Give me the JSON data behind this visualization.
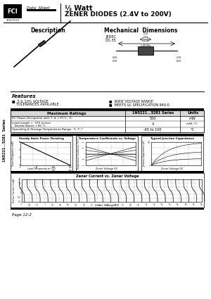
{
  "title_half_watt": "½ Watt",
  "title_zener": "ZENER DIODES (2.4V to 200V)",
  "fci_text": "FCI",
  "data_sheet_text": "Data  Sheet",
  "series_label": "1N5221...5281  Series",
  "description_text": "Description",
  "mech_dim_text": "Mechanical  Dimensions",
  "jedec_text": "JEDEC",
  "do35_text": "DO-35",
  "features_title": "Features",
  "feature1a": "■  5 & 10% VOLTAGE",
  "feature1b": "    TOLERANCES AVAILABLE",
  "feature2a": "■  WIDE VOLTAGE RANGE",
  "feature2b": "■  MEETS UL SPECIFICATION 94V-0",
  "max_ratings_title": "Maximum Ratings",
  "series_title2": "1N5221...5281 Series",
  "units_title": "Units",
  "row1_label": "DC Power Dissipation with Tₗ ≤ +75°C...Pₙ",
  "row1_val": "500",
  "row1_unit": "mW",
  "row2_label": "Lead Length = .375 Inches",
  "row2b_label": "   Derate above +50 °C",
  "row2_val": "4",
  "row2_unit": "mW /°C",
  "row3_label": "Operating & Storage Temperature Range...Tₗ, Tₛₜᴳ",
  "row3_val": "-65 to 100",
  "row3_unit": "°C",
  "graph1_title": "Steady State Power Derating",
  "graph2_title": "Temperature Coefficients vs. Voltage",
  "graph3_title": "Typical Junction Capacitance",
  "graph4_title": "Zener Current vs. Zener Voltage",
  "graph1_ylabel": "Power Dissipation (mW)",
  "graph1_xlabel": "Lead Temperature (°C)",
  "graph2_ylabel": "Temperature Coefficient (%/°C)",
  "graph2_xlabel": "Zener Voltage (V)",
  "graph3_ylabel": "Junction Capacitance (pF)",
  "graph3_xlabel": "Zener Voltage (V)",
  "graph4_ylabel": "Zener Current (mA)",
  "graph4_xlabel": "Zener Voltage (V)",
  "page_text": "Page 12-2",
  "bg_color": "#ffffff",
  "black": "#000000",
  "grid_color": "#aaaaaa",
  "table_header_bg": "#d8d8d8",
  "light_gray": "#cccccc"
}
